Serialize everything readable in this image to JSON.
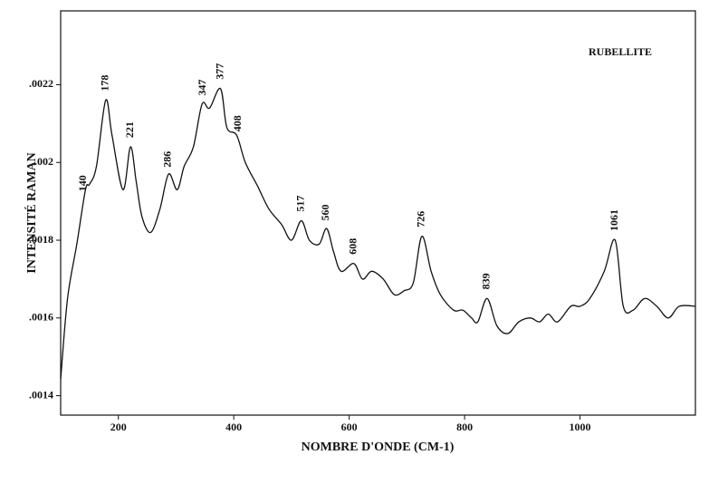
{
  "chart_data": {
    "type": "line",
    "title": "RUBELLITE",
    "xlabel": "NOMBRE D'ONDE (CM-1)",
    "ylabel": "INTENSITÉ RAMAN",
    "x": [
      100,
      112,
      128,
      143,
      150,
      162,
      178,
      189,
      208,
      221,
      231,
      241,
      256,
      272,
      287,
      302,
      314,
      330,
      345,
      358,
      377,
      388,
      405,
      420,
      441,
      461,
      483,
      500,
      517,
      531,
      548,
      561,
      573,
      586,
      608,
      623,
      639,
      659,
      678,
      695,
      711,
      726,
      742,
      758,
      781,
      797,
      812,
      823,
      839,
      856,
      875,
      894,
      914,
      930,
      945,
      961,
      984,
      1000,
      1017,
      1042,
      1061,
      1075,
      1092,
      1112,
      1133,
      1153,
      1172,
      1200
    ],
    "series": [
      {
        "name": "RUBELLITE",
        "color": "#111111",
        "values": [
          0.001443,
          0.001651,
          0.00179,
          0.00193,
          0.001944,
          0.00199,
          0.00216,
          0.00207,
          0.00193,
          0.00204,
          0.00195,
          0.00186,
          0.00182,
          0.00188,
          0.00197,
          0.00193,
          0.00199,
          0.00204,
          0.00215,
          0.00214,
          0.00219,
          0.00209,
          0.00207,
          0.002,
          0.00194,
          0.00188,
          0.00184,
          0.0018,
          0.00185,
          0.0018,
          0.00179,
          0.00183,
          0.00177,
          0.00172,
          0.00174,
          0.0017,
          0.00172,
          0.0017,
          0.00166,
          0.00167,
          0.00169,
          0.00181,
          0.00172,
          0.00166,
          0.00162,
          0.00162,
          0.0016,
          0.00159,
          0.00165,
          0.00158,
          0.00156,
          0.00159,
          0.0016,
          0.00159,
          0.00161,
          0.00159,
          0.00163,
          0.00163,
          0.00165,
          0.00172,
          0.0018,
          0.00163,
          0.00162,
          0.00165,
          0.00163,
          0.0016,
          0.00163,
          0.00163
        ]
      }
    ],
    "annotations": [
      140,
      178,
      221,
      286,
      347,
      377,
      408,
      517,
      560,
      608,
      726,
      839,
      1061
    ],
    "xlim": [
      100,
      1200
    ],
    "ylim": [
      0.00135,
      0.00239
    ],
    "xticks": [
      200,
      400,
      600,
      800,
      1000
    ],
    "yticks": [
      {
        "value": 0.0014,
        "label": ".0014"
      },
      {
        "value": 0.0016,
        "label": ".0016"
      },
      {
        "value": 0.0018,
        "label": ".0018"
      },
      {
        "value": 0.002,
        "label": ".002"
      },
      {
        "value": 0.0022,
        "label": ".0022"
      }
    ],
    "grid": false
  }
}
